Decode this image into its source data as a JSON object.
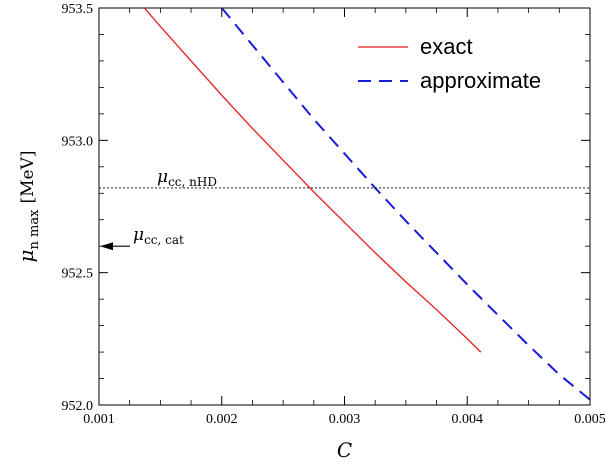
{
  "chart_data": {
    "type": "line",
    "xlabel": "C",
    "ylabel_main": "μ",
    "ylabel_sub": "n max",
    "ylabel_unit": "[MeV]",
    "xlim": [
      0.001,
      0.005
    ],
    "ylim": [
      952.0,
      953.5
    ],
    "x_ticks": [
      "0.001",
      "0.002",
      "0.003",
      "0.004",
      "0.005"
    ],
    "y_ticks": [
      "952.0",
      "952.5",
      "953.0",
      "953.5"
    ],
    "grid": false,
    "legend_position": "top-right",
    "series": [
      {
        "name": "exact",
        "color": "#e8191a",
        "style": "solid",
        "x": [
          0.00137,
          0.0015,
          0.00175,
          0.002,
          0.00225,
          0.0025,
          0.00275,
          0.003,
          0.00325,
          0.0035,
          0.00375,
          0.004,
          0.00411
        ],
        "y": [
          953.5,
          953.43,
          953.3,
          953.17,
          953.045,
          952.925,
          952.805,
          952.69,
          952.575,
          952.465,
          952.36,
          952.25,
          952.2
        ]
      },
      {
        "name": "approximate",
        "color": "#1a1adb",
        "style": "dashed",
        "x": [
          0.002,
          0.00225,
          0.0025,
          0.00275,
          0.003,
          0.00325,
          0.0035,
          0.00375,
          0.004,
          0.00425,
          0.0045,
          0.00475,
          0.005
        ],
        "y": [
          953.5,
          953.36,
          953.22,
          953.08,
          952.95,
          952.82,
          952.695,
          952.575,
          952.455,
          952.34,
          952.225,
          952.115,
          952.02
        ]
      }
    ],
    "reference_line": {
      "y": 952.82,
      "style": "dotted",
      "label_main": "μ",
      "label_sub": "cc, nHD"
    },
    "arrow_annotation": {
      "y": 952.6,
      "label_main": "μ",
      "label_sub": "cc, cat"
    }
  }
}
